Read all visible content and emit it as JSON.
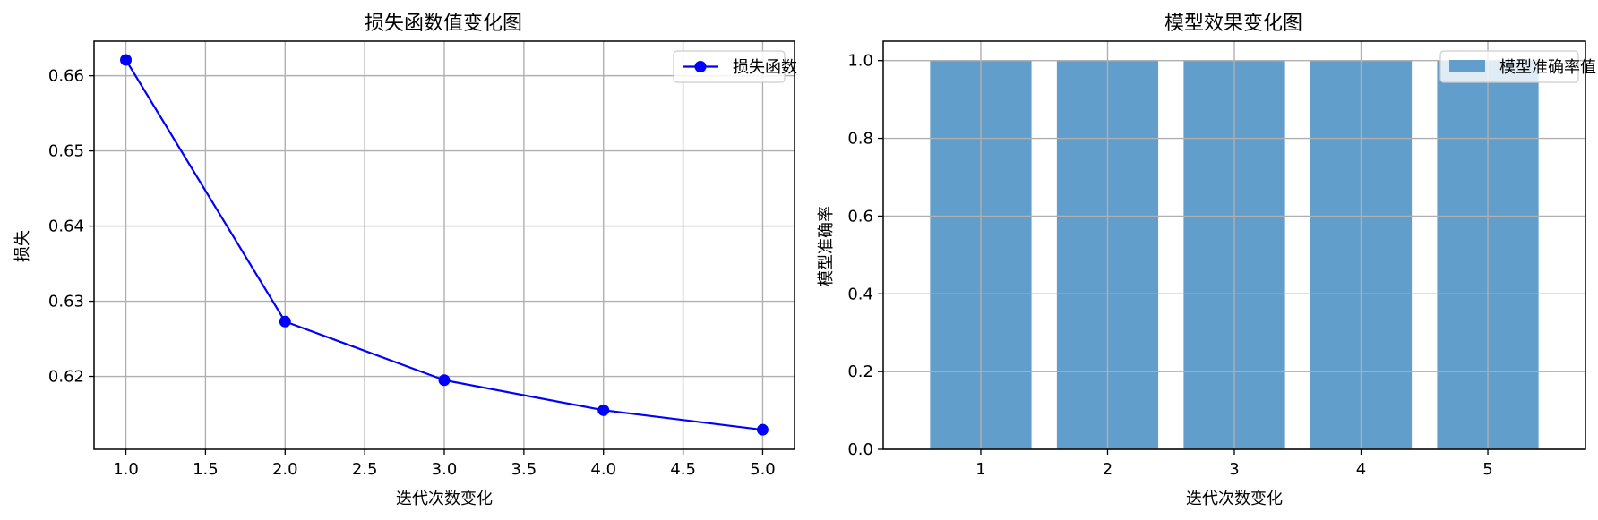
{
  "chart_data": [
    {
      "type": "line",
      "title": "损失函数值变化图",
      "xlabel": "迭代次数变化",
      "ylabel": "损失",
      "x": [
        1.0,
        2.0,
        3.0,
        4.0,
        5.0
      ],
      "series": [
        {
          "name": "损失函数",
          "values": [
            0.6621,
            0.6273,
            0.6195,
            0.6155,
            0.6129
          ],
          "color": "#0000ff",
          "marker": "circle"
        }
      ],
      "xlim": [
        0.8,
        5.2
      ],
      "ylim": [
        0.6103,
        0.6646
      ],
      "xticks": [
        1.0,
        1.5,
        2.0,
        2.5,
        3.0,
        3.5,
        4.0,
        4.5,
        5.0
      ],
      "xtick_labels": [
        "1.0",
        "1.5",
        "2.0",
        "2.5",
        "3.0",
        "3.5",
        "4.0",
        "4.5",
        "5.0"
      ],
      "yticks": [
        0.62,
        0.63,
        0.64,
        0.65,
        0.66
      ],
      "ytick_labels": [
        "0.62",
        "0.63",
        "0.64",
        "0.65",
        "0.66"
      ],
      "grid": true,
      "legend_position": "top-right"
    },
    {
      "type": "bar",
      "title": "模型效果变化图",
      "xlabel": "迭代次数变化",
      "ylabel": "模型准确率",
      "categories": [
        "1",
        "2",
        "3",
        "4",
        "5"
      ],
      "series": [
        {
          "name": "模型准确率值",
          "values": [
            1.0,
            1.0,
            1.0,
            1.0,
            1.0
          ],
          "color": "#619ecb"
        }
      ],
      "ylim": [
        0.0,
        1.05
      ],
      "yticks": [
        0.0,
        0.2,
        0.4,
        0.6,
        0.8,
        1.0
      ],
      "ytick_labels": [
        "0.0",
        "0.2",
        "0.4",
        "0.6",
        "0.8",
        "1.0"
      ],
      "grid": true,
      "legend_position": "top-right"
    }
  ]
}
